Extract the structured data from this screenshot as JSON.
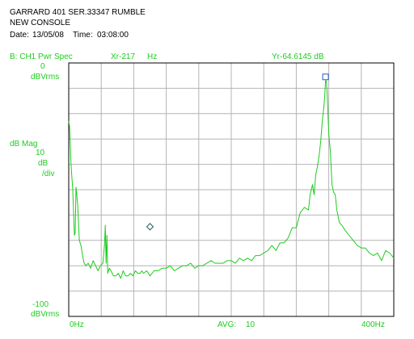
{
  "header": {
    "title_line1": "GARRARD 401 SER.33347 RUMBLE",
    "title_line2": "NEW CONSOLE",
    "date_label": "Date:",
    "date_value": "13/05/08",
    "time_label": "Time:",
    "time_value": "03:08:00"
  },
  "status": {
    "trace": "B:  CH1 Pwr Spec",
    "x_readout": "Xr-217",
    "x_unit": "Hz",
    "y_readout": "Yr-64.6145 dB"
  },
  "labels": {
    "y_top_value": "0",
    "y_top_unit": "dBVrms",
    "y_mid_scale": "dB Mag",
    "y_div_value": "10",
    "y_div_unit": "dB",
    "y_div_per": "/div",
    "y_bottom_value": "-100",
    "y_bottom_unit": "dBVrms",
    "x_start": "0Hz",
    "avg_label": "AVG:",
    "avg_value": "10",
    "x_end": "400Hz"
  },
  "colors": {
    "trace": "#1ecc1e",
    "grid": "#b4b4b4",
    "frame": "#000000",
    "marker_primary": "#1f5fbf",
    "marker_secondary": "#1f5f5f"
  },
  "chart_data": {
    "type": "line",
    "title": "GARRARD 401 SER.33347 RUMBLE",
    "xlabel": "",
    "ylabel": "dB Mag",
    "xlim": [
      0,
      400
    ],
    "ylim": [
      -100,
      0
    ],
    "grid": true,
    "x_divisions": 10,
    "y_divisions": 10,
    "series": [
      {
        "x": [
          0,
          1,
          3,
          5,
          7,
          8,
          9,
          11,
          13,
          15,
          17,
          19,
          21,
          24,
          27,
          30,
          33,
          36,
          39,
          42,
          44,
          45,
          46,
          47,
          48,
          50,
          52,
          55,
          58,
          61,
          64,
          67,
          70,
          73,
          76,
          79,
          82,
          85,
          88,
          90,
          92,
          96,
          100,
          105,
          110,
          115,
          120,
          125,
          130,
          135,
          140,
          145,
          150,
          155,
          160,
          165,
          170,
          175,
          180,
          185,
          190,
          195,
          200,
          205,
          210,
          215,
          220,
          225,
          230,
          235,
          240,
          245,
          250,
          255,
          260,
          265,
          270,
          275,
          280,
          285,
          290,
          295,
          297,
          300,
          302,
          304,
          306,
          308,
          310,
          312,
          314,
          315,
          316,
          317,
          318,
          319,
          320,
          322,
          324,
          326,
          328,
          330,
          333,
          336,
          340,
          345,
          350,
          355,
          360,
          365,
          370,
          375,
          380,
          385,
          390,
          395,
          400
        ],
        "y": [
          -23,
          -25,
          -41,
          -50,
          -68,
          -67,
          -49,
          -56,
          -70,
          -72,
          -76,
          -79,
          -80,
          -79,
          -81,
          -78,
          -80,
          -82,
          -80,
          -79,
          -72,
          -64,
          -79,
          -68,
          -83,
          -81,
          -82,
          -84,
          -84,
          -83,
          -85,
          -82,
          -84,
          -84,
          -83,
          -84,
          -82,
          -83,
          -83,
          -82,
          -83,
          -82,
          -84,
          -82,
          -82,
          -81,
          -81,
          -80,
          -82,
          -81,
          -80,
          -80,
          -79,
          -81,
          -80,
          -80,
          -79,
          -78,
          -79,
          -79,
          -79,
          -78,
          -78,
          -79,
          -77,
          -78,
          -77,
          -78,
          -76,
          -76,
          -75,
          -74,
          -72,
          -74,
          -71,
          -71,
          -69,
          -65,
          -65,
          -59,
          -57,
          -58,
          -52,
          -48,
          -52,
          -44,
          -41,
          -37,
          -31,
          -23,
          -17,
          -13,
          -7,
          -7,
          -12,
          -20,
          -28,
          -35,
          -48,
          -51,
          -52,
          -58,
          -63,
          -64,
          -66,
          -68,
          -70,
          -72,
          -73,
          -73,
          -75,
          -76,
          -75,
          -78,
          -74,
          -75,
          -77
        ]
      }
    ],
    "markers": [
      {
        "x": 316,
        "y": -5.5,
        "shape": "square"
      },
      {
        "x": 100,
        "y": -64.6145,
        "shape": "diamond"
      }
    ]
  }
}
